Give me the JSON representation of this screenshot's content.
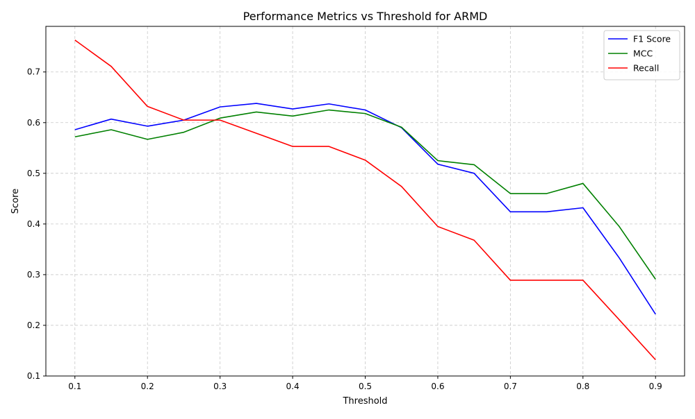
{
  "chart_data": {
    "type": "line",
    "title": "Performance Metrics vs Threshold for ARMD",
    "xlabel": "Threshold",
    "ylabel": "Score",
    "x": [
      0.1,
      0.15,
      0.2,
      0.25,
      0.3,
      0.35,
      0.4,
      0.45,
      0.5,
      0.55,
      0.6,
      0.65,
      0.7,
      0.75,
      0.8,
      0.85,
      0.9
    ],
    "xlim": [
      0.06,
      0.94
    ],
    "ylim": [
      0.1,
      0.79
    ],
    "xticks": [
      0.1,
      0.2,
      0.3,
      0.4,
      0.5,
      0.6,
      0.7,
      0.8,
      0.9
    ],
    "xtick_labels": [
      "0.1",
      "0.2",
      "0.3",
      "0.4",
      "0.5",
      "0.6",
      "0.7",
      "0.8",
      "0.9"
    ],
    "yticks": [
      0.1,
      0.2,
      0.3,
      0.4,
      0.5,
      0.6,
      0.7
    ],
    "ytick_labels": [
      "0.1",
      "0.2",
      "0.3",
      "0.4",
      "0.5",
      "0.6",
      "0.7"
    ],
    "grid": true,
    "legend_position": "top-right",
    "series": [
      {
        "name": "F1 Score",
        "color": "#0000ff",
        "values": [
          0.586,
          0.607,
          0.593,
          0.605,
          0.631,
          0.638,
          0.627,
          0.637,
          0.625,
          0.59,
          0.518,
          0.5,
          0.424,
          0.424,
          0.432,
          0.333,
          0.222
        ]
      },
      {
        "name": "MCC",
        "color": "#008000",
        "values": [
          0.572,
          0.586,
          0.567,
          0.581,
          0.609,
          0.621,
          0.613,
          0.625,
          0.618,
          0.591,
          0.525,
          0.517,
          0.46,
          0.46,
          0.48,
          0.395,
          0.291
        ]
      },
      {
        "name": "Recall",
        "color": "#ff0000",
        "values": [
          0.763,
          0.711,
          0.632,
          0.605,
          0.605,
          0.579,
          0.553,
          0.553,
          0.526,
          0.474,
          0.395,
          0.368,
          0.289,
          0.289,
          0.289,
          0.211,
          0.132
        ]
      }
    ]
  }
}
